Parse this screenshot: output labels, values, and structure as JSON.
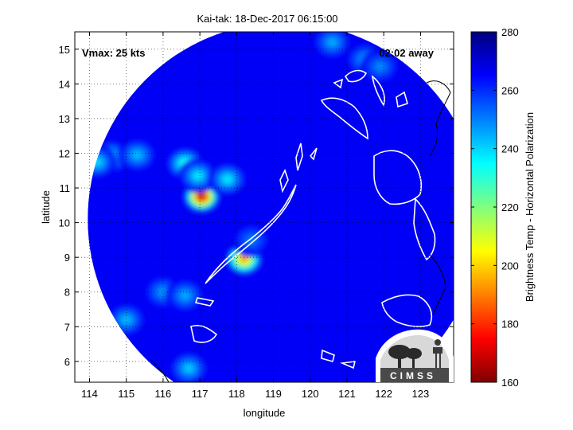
{
  "chart_data": {
    "type": "heatmap",
    "title": "Kai-tak: 18-Dec-2017 06:15:00",
    "xlabel": "longitude",
    "ylabel": "latitude",
    "xlim": [
      113.6,
      123.9
    ],
    "ylim": [
      5.4,
      15.5
    ],
    "x_ticks": [
      114,
      115,
      116,
      117,
      118,
      119,
      120,
      121,
      122,
      123
    ],
    "y_ticks": [
      6,
      7,
      8,
      9,
      10,
      11,
      12,
      13,
      14,
      15
    ],
    "grid": true,
    "colorbar": {
      "label": "Brightness Temp - Horizontal Polarization",
      "min": 160,
      "max": 280,
      "ticks": [
        160,
        180,
        200,
        220,
        240,
        260,
        280
      ],
      "colormap": "jet"
    },
    "swath": {
      "center_lon": 119.3,
      "center_lat": 10.1,
      "radius_deg": 5.35,
      "background_temp": 266
    },
    "features": [
      {
        "lon": 117.05,
        "lat": 10.75,
        "temp": 168
      },
      {
        "lon": 118.2,
        "lat": 8.95,
        "temp": 190
      },
      {
        "lon": 116.6,
        "lat": 11.7,
        "temp": 228
      },
      {
        "lon": 116.95,
        "lat": 11.35,
        "temp": 236
      },
      {
        "lon": 117.75,
        "lat": 11.25,
        "temp": 236
      },
      {
        "lon": 114.6,
        "lat": 11.9,
        "temp": 238
      },
      {
        "lon": 115.3,
        "lat": 11.95,
        "temp": 242
      },
      {
        "lon": 114.2,
        "lat": 11.75,
        "temp": 238
      },
      {
        "lon": 116.0,
        "lat": 8.0,
        "temp": 246
      },
      {
        "lon": 116.6,
        "lat": 7.9,
        "temp": 244
      },
      {
        "lon": 118.4,
        "lat": 9.5,
        "temp": 250
      },
      {
        "lon": 115.0,
        "lat": 7.2,
        "temp": 242
      },
      {
        "lon": 121.5,
        "lat": 14.7,
        "temp": 244
      },
      {
        "lon": 120.6,
        "lat": 15.2,
        "temp": 244
      },
      {
        "lon": 121.9,
        "lat": 14.5,
        "temp": 248
      },
      {
        "lon": 116.7,
        "lat": 5.8,
        "temp": 240
      }
    ],
    "annotations": [
      {
        "text": "Vmax: 25 kts",
        "position": "top-left"
      },
      {
        "text": "02:02 away",
        "position": "top-right"
      }
    ],
    "logo": {
      "text": "CIMSS",
      "position": "bottom-right"
    }
  }
}
